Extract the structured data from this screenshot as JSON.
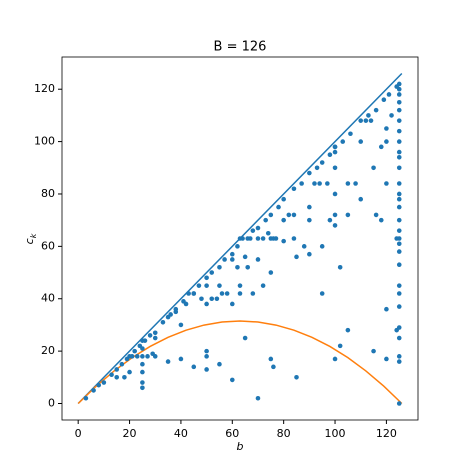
{
  "chart_data": {
    "type": "scatter",
    "title": "B = 126",
    "xlabel": "b",
    "ylabel": [
      "c",
      "k"
    ],
    "xlim": [
      -6.3,
      132.3
    ],
    "ylim": [
      -6.3,
      132.3
    ],
    "xticks": [
      0,
      20,
      40,
      60,
      80,
      100,
      120
    ],
    "yticks": [
      0,
      20,
      40,
      60,
      80,
      100,
      120
    ],
    "grid": false,
    "series": [
      {
        "color": "#1f77b4",
        "x": [
          3,
          6,
          8,
          10,
          13,
          15,
          17,
          19,
          20,
          22,
          24,
          26,
          28,
          30,
          33,
          36,
          38,
          41,
          43,
          45,
          47,
          50,
          52,
          55,
          57,
          60,
          62,
          64,
          66,
          68,
          70,
          73,
          75,
          78,
          80,
          84,
          87,
          90,
          93,
          95,
          98,
          100,
          103,
          106,
          110,
          113,
          116,
          119,
          121,
          124,
          25,
          25,
          25,
          25,
          25,
          25,
          25,
          21,
          23,
          27,
          29,
          30,
          20,
          18,
          15,
          30,
          35,
          40,
          45,
          50,
          50,
          50,
          55,
          60,
          65,
          75,
          76,
          85,
          100,
          102,
          105,
          115,
          120,
          125,
          70,
          125,
          35,
          38,
          40,
          42,
          45,
          48,
          50,
          50,
          52,
          54,
          55,
          56,
          58,
          60,
          60,
          62,
          63,
          63,
          63,
          65,
          66,
          67,
          68,
          70,
          70,
          72,
          72,
          74,
          75,
          75,
          76,
          77,
          80,
          80,
          82,
          84,
          84,
          85,
          88,
          90,
          90,
          90,
          92,
          94,
          95,
          95,
          97,
          98,
          100,
          100,
          100,
          100,
          100,
          100,
          102,
          105,
          105,
          108,
          110,
          110,
          112,
          114,
          115,
          116,
          118,
          120,
          120,
          120,
          120,
          122,
          124,
          124,
          118,
          125,
          125,
          125,
          125,
          125,
          125,
          125,
          125,
          125,
          125,
          125,
          125,
          125,
          125,
          125,
          125,
          125,
          125,
          125,
          125,
          125,
          125,
          125,
          125,
          125,
          125,
          125
        ],
        "values": [
          2,
          5,
          7,
          8,
          11,
          13,
          15,
          17,
          18,
          20,
          22,
          24,
          26,
          27,
          31,
          34,
          36,
          39,
          42,
          42,
          45,
          48,
          50,
          52,
          55,
          57,
          60,
          63,
          63,
          66,
          67,
          70,
          72,
          75,
          78,
          82,
          84,
          88,
          90,
          92,
          95,
          98,
          100,
          103,
          108,
          110,
          112,
          116,
          118,
          121,
          6,
          8,
          12,
          15,
          18,
          21,
          24,
          18,
          18,
          18,
          19,
          25,
          12,
          10,
          10,
          18,
          16,
          17,
          14,
          13,
          18,
          20,
          15,
          9,
          25,
          17,
          14,
          10,
          17,
          22,
          28,
          20,
          17,
          16,
          2,
          0,
          33,
          35,
          30,
          38,
          42,
          40,
          45,
          38,
          40,
          40,
          45,
          42,
          42,
          38,
          55,
          52,
          42,
          45,
          63,
          56,
          52,
          63,
          42,
          63,
          55,
          63,
          45,
          65,
          63,
          50,
          63,
          63,
          70,
          62,
          72,
          72,
          63,
          56,
          60,
          75,
          70,
          57,
          84,
          84,
          60,
          42,
          84,
          70,
          90,
          80,
          98,
          96,
          72,
          68,
          52,
          84,
          72,
          84,
          100,
          78,
          108,
          108,
          90,
          72,
          98,
          105,
          100,
          84,
          36,
          110,
          63,
          28,
          70,
          18,
          25,
          29,
          37,
          42,
          45,
          53,
          58,
          61,
          63,
          66,
          70,
          75,
          78,
          80,
          84,
          90,
          94,
          96,
          100,
          104,
          108,
          112,
          115,
          118,
          120,
          122
        ]
      }
    ],
    "lines": [
      {
        "color": "#1f77b4",
        "x": [
          0,
          126
        ],
        "values": [
          0,
          126
        ]
      },
      {
        "color": "#ff7f0e",
        "x": [
          0,
          7,
          14,
          21,
          28,
          35,
          42,
          49,
          56,
          63,
          70,
          77,
          84,
          91,
          98,
          105,
          112,
          119,
          126
        ],
        "values": [
          0,
          6.61,
          12.44,
          17.5,
          21.78,
          25.28,
          28,
          29.94,
          31.11,
          31.5,
          31.11,
          29.94,
          28,
          25.28,
          21.78,
          17.5,
          12.44,
          6.61,
          0
        ]
      }
    ]
  }
}
